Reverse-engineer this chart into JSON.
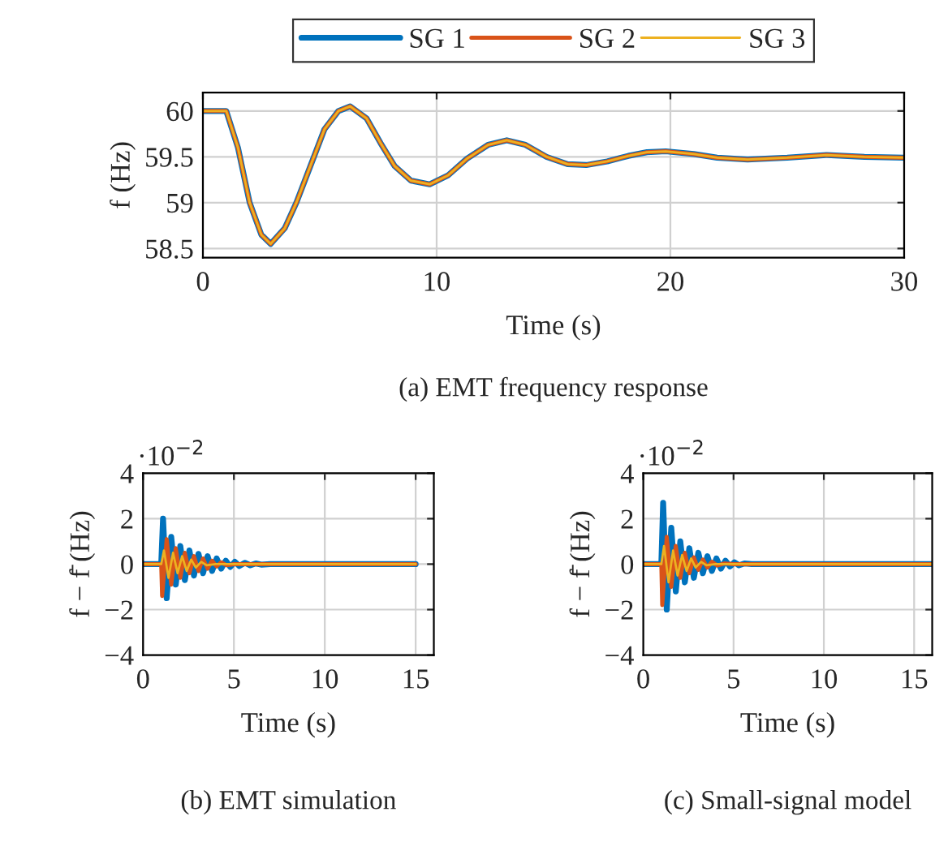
{
  "chart_data": [
    {
      "type": "line",
      "title": "(a) EMT frequency response",
      "xlabel": "Time (s)",
      "ylabel": "f (Hz)",
      "xlim": [
        0,
        30
      ],
      "xticks": [
        0,
        10,
        20,
        30
      ],
      "ylim": [
        58.4,
        60.2
      ],
      "yticks": [
        58.5,
        59,
        59.5,
        60
      ],
      "grid": true,
      "legend": "top",
      "series": [
        {
          "name": "SG 1",
          "color": "#0072bd",
          "x": [
            0,
            1,
            1.5,
            2,
            2.5,
            2.9,
            3.5,
            4,
            4.6,
            5.2,
            5.8,
            6.3,
            7,
            7.6,
            8.2,
            8.9,
            9.7,
            10.5,
            11.3,
            12.2,
            13,
            13.8,
            14.7,
            15.6,
            16.4,
            17.3,
            18.2,
            19,
            19.8,
            21,
            22,
            23.3,
            25,
            26.7,
            28.3,
            30
          ],
          "values": [
            60,
            60,
            59.6,
            59,
            58.65,
            58.55,
            58.72,
            59,
            59.4,
            59.8,
            60,
            60.05,
            59.92,
            59.65,
            59.4,
            59.24,
            59.2,
            59.3,
            59.48,
            59.63,
            59.68,
            59.63,
            59.5,
            59.42,
            59.41,
            59.45,
            59.51,
            59.55,
            59.56,
            59.53,
            59.49,
            59.47,
            59.49,
            59.52,
            59.5,
            59.49
          ]
        },
        {
          "name": "SG 2",
          "color": "#d95319",
          "x": [
            0,
            1,
            1.5,
            2,
            2.5,
            2.9,
            3.5,
            4,
            4.6,
            5.2,
            5.8,
            6.3,
            7,
            7.6,
            8.2,
            8.9,
            9.7,
            10.5,
            11.3,
            12.2,
            13,
            13.8,
            14.7,
            15.6,
            16.4,
            17.3,
            18.2,
            19,
            19.8,
            21,
            22,
            23.3,
            25,
            26.7,
            28.3,
            30
          ],
          "values": [
            60,
            60,
            59.6,
            59,
            58.65,
            58.55,
            58.72,
            59,
            59.4,
            59.8,
            60,
            60.05,
            59.92,
            59.65,
            59.4,
            59.24,
            59.2,
            59.3,
            59.48,
            59.63,
            59.68,
            59.63,
            59.5,
            59.42,
            59.41,
            59.45,
            59.51,
            59.55,
            59.56,
            59.53,
            59.49,
            59.47,
            59.49,
            59.52,
            59.5,
            59.49
          ]
        },
        {
          "name": "SG 3",
          "color": "#edb120",
          "x": [
            0,
            1,
            1.5,
            2,
            2.5,
            2.9,
            3.5,
            4,
            4.6,
            5.2,
            5.8,
            6.3,
            7,
            7.6,
            8.2,
            8.9,
            9.7,
            10.5,
            11.3,
            12.2,
            13,
            13.8,
            14.7,
            15.6,
            16.4,
            17.3,
            18.2,
            19,
            19.8,
            21,
            22,
            23.3,
            25,
            26.7,
            28.3,
            30
          ],
          "values": [
            60,
            60,
            59.6,
            59,
            58.65,
            58.55,
            58.72,
            59,
            59.4,
            59.8,
            60,
            60.05,
            59.92,
            59.65,
            59.4,
            59.24,
            59.2,
            59.3,
            59.48,
            59.63,
            59.68,
            59.63,
            59.5,
            59.42,
            59.41,
            59.45,
            59.51,
            59.55,
            59.56,
            59.53,
            59.49,
            59.47,
            59.49,
            59.52,
            59.5,
            59.49
          ]
        }
      ]
    },
    {
      "type": "line",
      "title": "(b) EMT simulation",
      "xlabel": "Time (s)",
      "ylabel": "f − f̄ (Hz)",
      "xlim": [
        0,
        16
      ],
      "xticks": [
        0,
        5,
        10,
        15
      ],
      "ylim": [
        -4,
        4
      ],
      "yticks": [
        -4,
        -2,
        0,
        2,
        4
      ],
      "grid": true,
      "annotations": [
        "·10$^{−2}$"
      ],
      "series": [
        {
          "color": "#0072bd",
          "x": [
            0,
            1,
            1.1,
            1.3,
            1.55,
            1.8,
            2.05,
            2.3,
            2.55,
            2.8,
            3.05,
            3.3,
            3.55,
            3.8,
            4.05,
            4.3,
            4.55,
            4.8,
            5.05,
            5.3,
            5.6,
            5.9,
            6.2,
            6.5,
            7,
            15
          ],
          "values": [
            0,
            0,
            2.0,
            -1.5,
            1.2,
            -0.9,
            0.8,
            -0.7,
            0.6,
            -0.5,
            0.45,
            -0.4,
            0.35,
            -0.3,
            0.25,
            -0.2,
            0.15,
            -0.12,
            0.1,
            -0.08,
            0.06,
            -0.05,
            0.03,
            -0.02,
            0,
            0
          ]
        },
        {
          "color": "#d95319",
          "x": [
            0,
            1,
            1.05,
            1.3,
            1.55,
            1.8,
            2.05,
            2.3,
            2.55,
            2.8,
            3.05,
            3.3,
            3.55,
            3.8,
            4.05,
            4.3,
            4.6,
            5,
            15
          ],
          "values": [
            0,
            0,
            -1.4,
            1.1,
            -0.9,
            0.7,
            -0.6,
            0.5,
            -0.4,
            0.35,
            -0.3,
            0.25,
            -0.2,
            0.15,
            -0.1,
            0.08,
            -0.05,
            0,
            0
          ]
        },
        {
          "color": "#edb120",
          "x": [
            0,
            1,
            1.15,
            1.4,
            1.65,
            1.9,
            2.15,
            2.4,
            2.65,
            2.9,
            3.2,
            3.5,
            4,
            15
          ],
          "values": [
            0,
            0,
            0.6,
            -0.6,
            0.5,
            -0.4,
            0.35,
            -0.3,
            0.2,
            -0.15,
            0.1,
            -0.05,
            0,
            0
          ]
        }
      ]
    },
    {
      "type": "line",
      "title": "(c) Small-signal model",
      "xlabel": "Time (s)",
      "ylabel": "f − f̄ (Hz)",
      "xlim": [
        0,
        16
      ],
      "xticks": [
        0,
        5,
        10,
        15
      ],
      "ylim": [
        -4,
        4
      ],
      "yticks": [
        -4,
        -2,
        0,
        2,
        4
      ],
      "grid": true,
      "annotations": [
        "·10$^{−2}$"
      ],
      "series": [
        {
          "color": "#0072bd",
          "x": [
            0,
            1,
            1.1,
            1.3,
            1.55,
            1.8,
            2.05,
            2.3,
            2.55,
            2.8,
            3.05,
            3.3,
            3.55,
            3.8,
            4.05,
            4.3,
            4.55,
            4.8,
            5.05,
            5.3,
            5.6,
            6,
            16
          ],
          "values": [
            0,
            0,
            2.7,
            -2.0,
            1.6,
            -1.2,
            1.0,
            -0.8,
            0.7,
            -0.6,
            0.5,
            -0.4,
            0.35,
            -0.3,
            0.25,
            -0.2,
            0.15,
            -0.1,
            0.08,
            -0.05,
            0.03,
            0,
            0
          ]
        },
        {
          "color": "#d95319",
          "x": [
            0,
            1,
            1.05,
            1.3,
            1.55,
            1.8,
            2.05,
            2.3,
            2.55,
            2.8,
            3.05,
            3.3,
            3.55,
            3.8,
            4.1,
            4.5,
            5,
            16
          ],
          "values": [
            0,
            0,
            -1.8,
            1.2,
            -1.0,
            0.8,
            -0.6,
            0.5,
            -0.4,
            0.3,
            -0.25,
            0.2,
            -0.15,
            0.1,
            -0.06,
            0.03,
            0,
            0
          ]
        },
        {
          "color": "#edb120",
          "x": [
            0,
            1,
            1.15,
            1.4,
            1.65,
            1.9,
            2.15,
            2.4,
            2.65,
            2.9,
            3.2,
            3.5,
            4,
            16
          ],
          "values": [
            0,
            0,
            0.8,
            -0.8,
            0.6,
            -0.5,
            0.4,
            -0.3,
            0.25,
            -0.15,
            0.1,
            -0.05,
            0,
            0
          ]
        }
      ]
    }
  ]
}
